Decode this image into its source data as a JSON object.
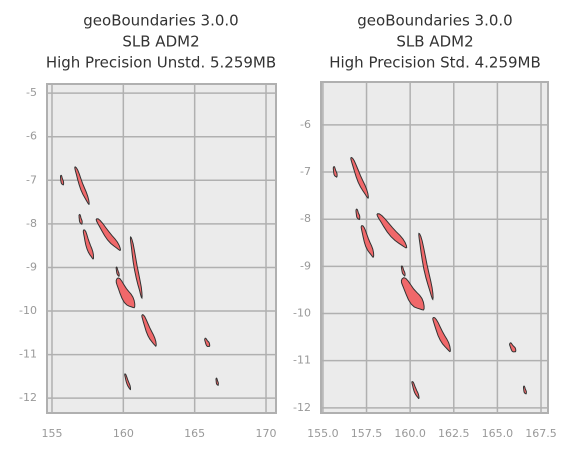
{
  "chart_data": [
    {
      "type": "map",
      "title": [
        "geoBoundaries 3.0.0",
        "SLB ADM2",
        "High Precision Unstd. 5.259MB"
      ],
      "xlim": [
        154.65,
        170.7
      ],
      "ylim": [
        -12.34,
        -4.79
      ],
      "xticks": [
        155,
        160,
        165,
        170
      ],
      "yticks": [
        -5,
        -6,
        -7,
        -8,
        -9,
        -10,
        -11,
        -12
      ],
      "grid": true,
      "color": "#f0686a"
    },
    {
      "type": "map",
      "title": [
        "geoBoundaries 3.0.0",
        "SLB ADM2",
        "High Precision Std. 4.259MB"
      ],
      "xlim": [
        154.89,
        167.9
      ],
      "ylim": [
        -12.11,
        -5.09
      ],
      "xticks": [
        {
          "value": 155,
          "label": "155.0"
        },
        {
          "value": 157.5,
          "label": "157.5"
        },
        {
          "value": 160,
          "label": "160.0"
        },
        {
          "value": 162.5,
          "label": "162.5"
        },
        {
          "value": 165,
          "label": "165.0"
        },
        {
          "value": 167.5,
          "label": "167.5"
        }
      ],
      "yticks": [
        -6,
        -7,
        -8,
        -9,
        -10,
        -11,
        -12
      ],
      "grid": true,
      "color": "#f0686a"
    }
  ]
}
